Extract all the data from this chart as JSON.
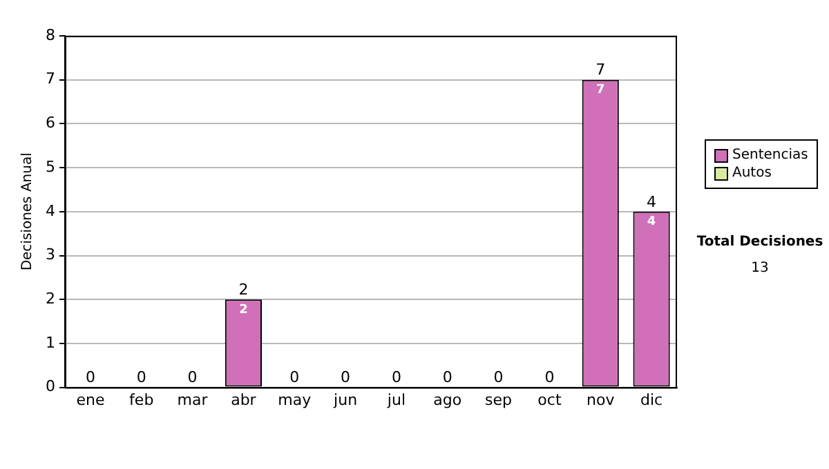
{
  "chart_data": {
    "type": "bar",
    "stacked": true,
    "ylabel": "Decisiones Anual",
    "categories": [
      "ene",
      "feb",
      "mar",
      "abr",
      "may",
      "jun",
      "jul",
      "ago",
      "sep",
      "oct",
      "nov",
      "dic"
    ],
    "series": [
      {
        "name": "Sentencias",
        "color": "#d070b8",
        "values": [
          0,
          0,
          0,
          2,
          0,
          0,
          0,
          0,
          0,
          0,
          7,
          4
        ],
        "value_labels": [
          null,
          null,
          null,
          "2",
          null,
          null,
          null,
          null,
          null,
          null,
          "7",
          "4"
        ]
      },
      {
        "name": "Autos",
        "color": "#d8eaa0",
        "values": [
          0,
          0,
          0,
          0,
          0,
          0,
          0,
          0,
          0,
          0,
          0,
          0
        ]
      }
    ],
    "totals": [
      "0",
      "0",
      "0",
      "2",
      "0",
      "0",
      "0",
      "0",
      "0",
      "0",
      "7",
      "4"
    ],
    "ylim": [
      0,
      8
    ],
    "yticks": [
      0,
      1,
      2,
      3,
      4,
      5,
      6,
      7,
      8
    ],
    "grid": "y",
    "legend": "right",
    "annotations": [
      "Total Decisiones",
      "13"
    ]
  }
}
